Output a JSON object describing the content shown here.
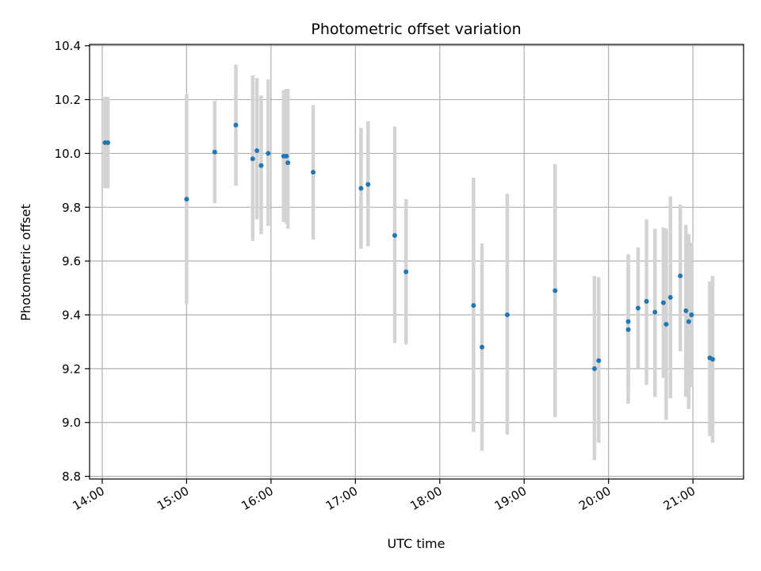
{
  "chart_data": {
    "type": "scatter",
    "title": "Photometric offset variation",
    "xlabel": "UTC time",
    "ylabel": "Photometric offset",
    "xlim": [
      "13:51",
      "21:36"
    ],
    "ylim": [
      8.79,
      10.405
    ],
    "grid": true,
    "x_ticks": [
      "14:00",
      "15:00",
      "16:00",
      "17:00",
      "18:00",
      "19:00",
      "20:00",
      "21:00"
    ],
    "y_ticks": [
      "8.8",
      "9.0",
      "9.2",
      "9.4",
      "9.6",
      "9.8",
      "10.0",
      "10.2",
      "10.4"
    ],
    "colors": {
      "marker": "#1f77b4",
      "errorbar": "#d3d3d3",
      "grid": "#b0b0b0",
      "axes": "#000000"
    },
    "series": [
      {
        "points": [
          {
            "x": "14:02",
            "y": 10.04,
            "err_low": 9.87,
            "err_high": 10.21
          },
          {
            "x": "14:04",
            "y": 10.04,
            "err_low": 9.87,
            "err_high": 10.21
          },
          {
            "x": "15:00",
            "y": 9.83,
            "err_low": 9.44,
            "err_high": 10.22
          },
          {
            "x": "15:20",
            "y": 10.005,
            "err_low": 9.815,
            "err_high": 10.195
          },
          {
            "x": "15:35",
            "y": 10.105,
            "err_low": 9.88,
            "err_high": 10.33
          },
          {
            "x": "15:47",
            "y": 9.98,
            "err_low": 9.675,
            "err_high": 10.29
          },
          {
            "x": "15:50",
            "y": 10.01,
            "err_low": 9.755,
            "err_high": 10.28
          },
          {
            "x": "15:53",
            "y": 9.955,
            "err_low": 9.7,
            "err_high": 10.215
          },
          {
            "x": "15:58",
            "y": 10.0,
            "err_low": 9.73,
            "err_high": 10.275
          },
          {
            "x": "16:09",
            "y": 9.99,
            "err_low": 9.745,
            "err_high": 10.235
          },
          {
            "x": "16:11",
            "y": 9.99,
            "err_low": 9.74,
            "err_high": 10.24
          },
          {
            "x": "16:12",
            "y": 9.965,
            "err_low": 9.72,
            "err_high": 10.24
          },
          {
            "x": "16:30",
            "y": 9.93,
            "err_low": 9.68,
            "err_high": 10.18
          },
          {
            "x": "17:04",
            "y": 9.87,
            "err_low": 9.645,
            "err_high": 10.095
          },
          {
            "x": "17:09",
            "y": 9.885,
            "err_low": 9.655,
            "err_high": 10.12
          },
          {
            "x": "17:28",
            "y": 9.695,
            "err_low": 9.295,
            "err_high": 10.1
          },
          {
            "x": "17:36",
            "y": 9.56,
            "err_low": 9.29,
            "err_high": 9.83
          },
          {
            "x": "18:24",
            "y": 9.435,
            "err_low": 8.965,
            "err_high": 9.91
          },
          {
            "x": "18:30",
            "y": 9.28,
            "err_low": 8.895,
            "err_high": 9.665
          },
          {
            "x": "18:48",
            "y": 9.4,
            "err_low": 8.955,
            "err_high": 9.85
          },
          {
            "x": "19:22",
            "y": 9.49,
            "err_low": 9.02,
            "err_high": 9.96
          },
          {
            "x": "19:50",
            "y": 9.2,
            "err_low": 8.86,
            "err_high": 9.545
          },
          {
            "x": "19:53",
            "y": 9.23,
            "err_low": 8.925,
            "err_high": 9.54
          },
          {
            "x": "20:14",
            "y": 9.345,
            "err_low": 9.07,
            "err_high": 9.625
          },
          {
            "x": "20:14",
            "y": 9.375,
            "err_low": 9.125,
            "err_high": 9.625
          },
          {
            "x": "20:21",
            "y": 9.425,
            "err_low": 9.2,
            "err_high": 9.65
          },
          {
            "x": "20:27",
            "y": 9.45,
            "err_low": 9.14,
            "err_high": 9.755
          },
          {
            "x": "20:33",
            "y": 9.41,
            "err_low": 9.095,
            "err_high": 9.72
          },
          {
            "x": "20:39",
            "y": 9.445,
            "err_low": 9.165,
            "err_high": 9.725
          },
          {
            "x": "20:41",
            "y": 9.365,
            "err_low": 9.01,
            "err_high": 9.72
          },
          {
            "x": "20:44",
            "y": 9.465,
            "err_low": 9.09,
            "err_high": 9.84
          },
          {
            "x": "20:51",
            "y": 9.545,
            "err_low": 9.265,
            "err_high": 9.81
          },
          {
            "x": "20:55",
            "y": 9.415,
            "err_low": 9.095,
            "err_high": 9.735
          },
          {
            "x": "20:57",
            "y": 9.375,
            "err_low": 9.05,
            "err_high": 9.7
          },
          {
            "x": "20:59",
            "y": 9.4,
            "err_low": 9.13,
            "err_high": 9.67
          },
          {
            "x": "21:12",
            "y": 9.24,
            "err_low": 8.95,
            "err_high": 9.525
          },
          {
            "x": "21:14",
            "y": 9.235,
            "err_low": 8.925,
            "err_high": 9.545
          }
        ]
      }
    ]
  }
}
